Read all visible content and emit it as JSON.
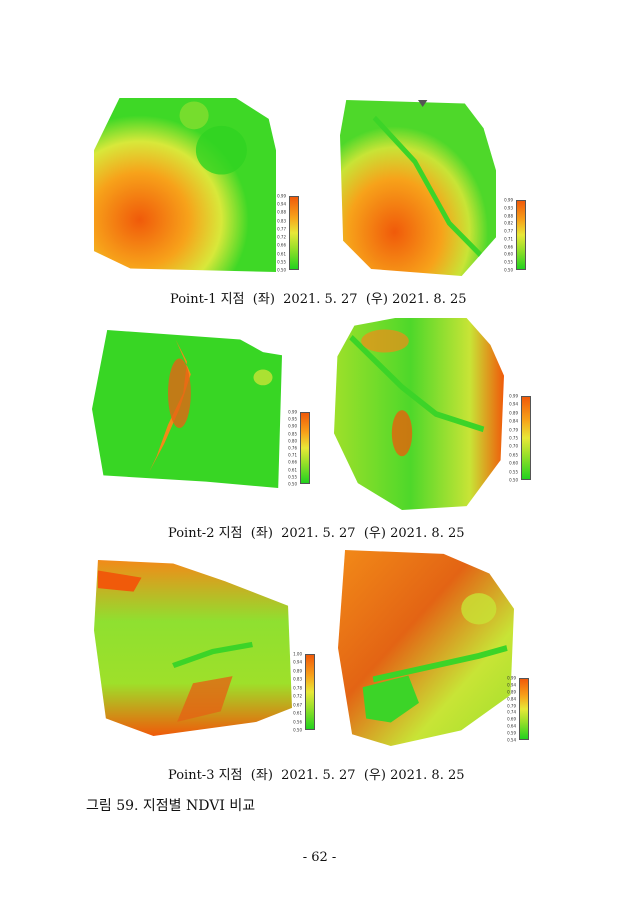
{
  "captions": {
    "row1": "Point-1 지점  (좌)  2021. 5. 27  (우) 2021. 8. 25",
    "row2": "Point-2 지점  (좌)  2021. 5. 27  (우) 2021. 8. 25",
    "row3": "Point-3 지점  (좌)  2021. 5. 27  (우) 2021. 8. 25"
  },
  "figure_caption": "그림 59. 지점별 NDVI 비교",
  "page_number": "- 62 -",
  "colors": {
    "high": "#f05a0a",
    "mid": "#e8e838",
    "low": "#22d21e"
  },
  "legends": {
    "p1_left": [
      "0.99",
      "0.94",
      "0.88",
      "0.83",
      "0.77",
      "0.72",
      "0.66",
      "0.61",
      "0.55",
      "0.50"
    ],
    "p1_right": [
      "0.99",
      "0.93",
      "0.88",
      "0.82",
      "0.77",
      "0.71",
      "0.66",
      "0.60",
      "0.55",
      "0.50"
    ],
    "p2_left": [
      "0.99",
      "0.95",
      "0.90",
      "0.85",
      "0.80",
      "0.76",
      "0.71",
      "0.66",
      "0.61",
      "0.55",
      "0.50"
    ],
    "p2_right": [
      "0.99",
      "0.94",
      "0.89",
      "0.84",
      "0.79",
      "0.75",
      "0.70",
      "0.65",
      "0.60",
      "0.55",
      "0.50"
    ],
    "p3_left": [
      "1.00",
      "0.94",
      "0.89",
      "0.83",
      "0.78",
      "0.72",
      "0.67",
      "0.61",
      "0.56",
      "0.50"
    ],
    "p3_right": [
      "0.99",
      "0.94",
      "0.89",
      "0.84",
      "0.79",
      "0.74",
      "0.69",
      "0.64",
      "0.59",
      "0.54"
    ]
  }
}
